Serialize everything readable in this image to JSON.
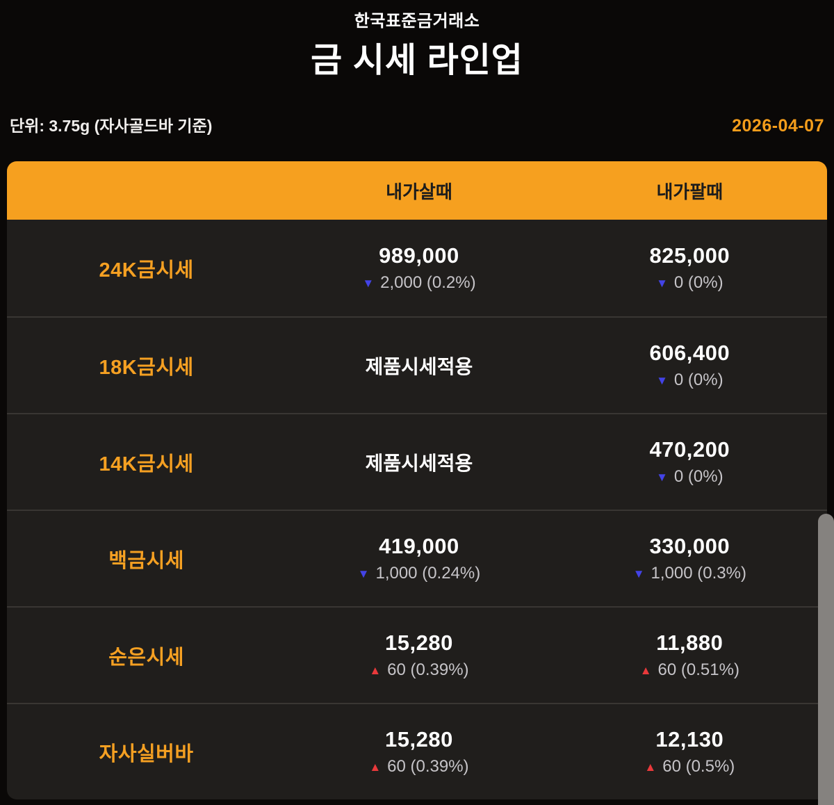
{
  "page": {
    "org_name": "한국표준금거래소",
    "title": "금 시세 라인업",
    "unit_label": "단위: 3.75g (자사골드바 기준)",
    "date": "2026-04-07"
  },
  "icons": {
    "down_triangle": "▼",
    "up_triangle": "▲"
  },
  "colors": {
    "accent_orange": "#f6a01f",
    "label_orange": "#f5a022",
    "date_orange": "#f49d1b",
    "down_blue": "#4343e6",
    "up_red": "#e9393b",
    "row_background": "#201e1c",
    "page_background": "#0a0807"
  },
  "table": {
    "columns": {
      "buy": "내가살때",
      "sell": "내가팔때"
    },
    "rows": [
      {
        "label": "24K금시세",
        "buy": {
          "price": "989,000",
          "direction": "down",
          "change": "2,000 (0.2%)"
        },
        "sell": {
          "price": "825,000",
          "direction": "down",
          "change": "0 (0%)"
        }
      },
      {
        "label": "18K금시세",
        "buy": {
          "text": "제품시세적용"
        },
        "sell": {
          "price": "606,400",
          "direction": "down",
          "change": "0 (0%)"
        }
      },
      {
        "label": "14K금시세",
        "buy": {
          "text": "제품시세적용"
        },
        "sell": {
          "price": "470,200",
          "direction": "down",
          "change": "0 (0%)"
        }
      },
      {
        "label": "백금시세",
        "buy": {
          "price": "419,000",
          "direction": "down",
          "change": "1,000 (0.24%)"
        },
        "sell": {
          "price": "330,000",
          "direction": "down",
          "change": "1,000 (0.3%)"
        }
      },
      {
        "label": "순은시세",
        "buy": {
          "price": "15,280",
          "direction": "up",
          "change": "60 (0.39%)"
        },
        "sell": {
          "price": "11,880",
          "direction": "up",
          "change": "60 (0.51%)"
        }
      },
      {
        "label": "자사실버바",
        "buy": {
          "price": "15,280",
          "direction": "up",
          "change": "60 (0.39%)"
        },
        "sell": {
          "price": "12,130",
          "direction": "up",
          "change": "60 (0.5%)"
        }
      }
    ]
  }
}
